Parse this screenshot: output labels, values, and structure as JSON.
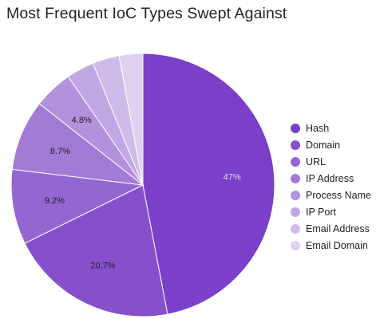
{
  "chart_data": {
    "type": "pie",
    "title": "Most Frequent IoC Types Swept Against",
    "legend_position": "right",
    "slices": [
      {
        "label": "Hash",
        "value": 47.0,
        "value_label": "47%",
        "color": "#7b3fc9"
      },
      {
        "label": "Domain",
        "value": 20.7,
        "value_label": "20.7%",
        "color": "#8650cd"
      },
      {
        "label": "URL",
        "value": 9.2,
        "value_label": "9.2%",
        "color": "#9466d2"
      },
      {
        "label": "IP Address",
        "value": 8.7,
        "value_label": "8.7%",
        "color": "#a17bd6"
      },
      {
        "label": "Process Name",
        "value": 4.8,
        "value_label": "4.8%",
        "color": "#b291dd"
      },
      {
        "label": "IP Port",
        "value": 3.4,
        "value_label": "",
        "color": "#c1a7e4"
      },
      {
        "label": "Email Address",
        "value": 3.3,
        "value_label": "",
        "color": "#cfbbea"
      },
      {
        "label": "Email Domain",
        "value": 2.9,
        "value_label": "",
        "color": "#dfd1f1"
      }
    ]
  }
}
